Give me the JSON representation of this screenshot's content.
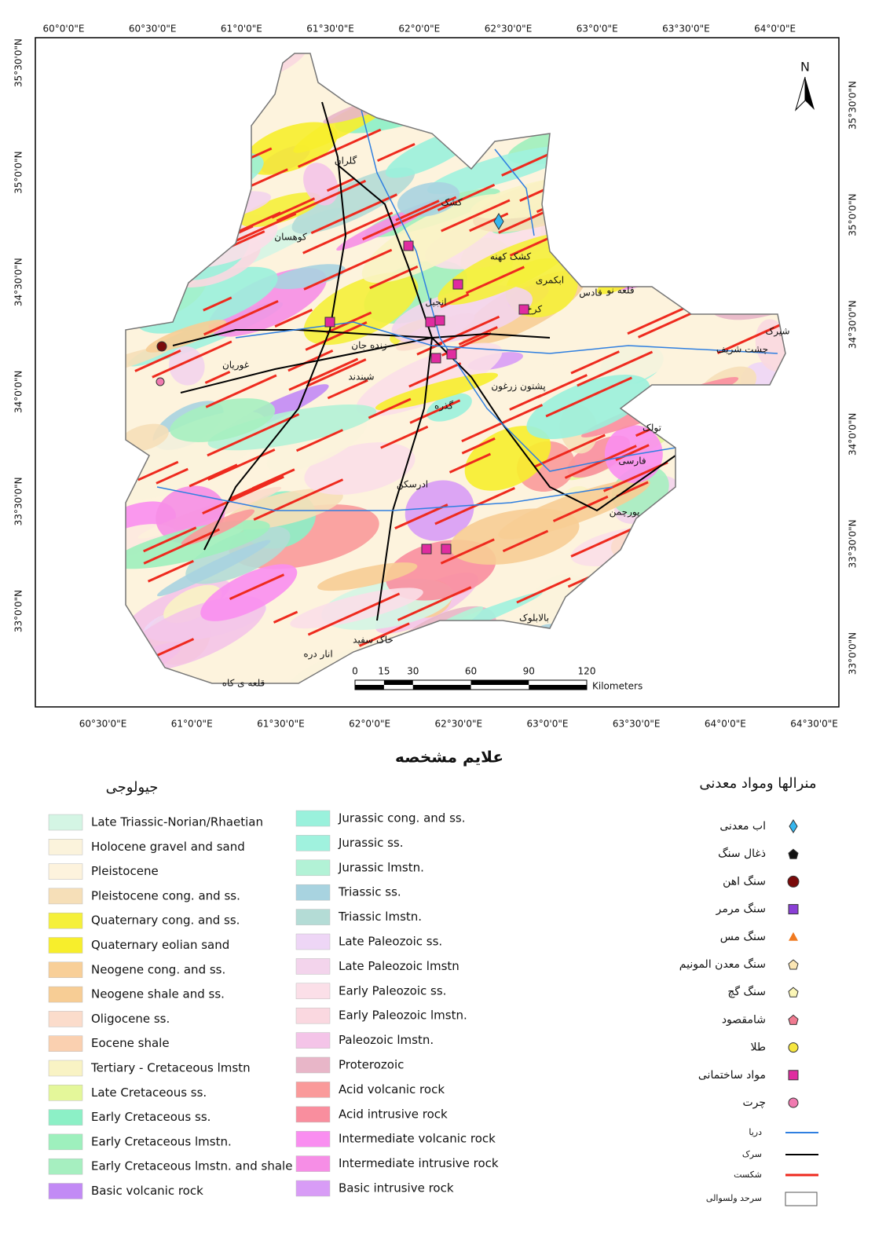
{
  "map": {
    "top_labels": [
      "60°0'0\"E",
      "60°30'0\"E",
      "61°0'0\"E",
      "61°30'0\"E",
      "62°0'0\"E",
      "62°30'0\"E",
      "63°0'0\"E",
      "63°30'0\"E",
      "64°0'0\"E"
    ],
    "bottom_labels": [
      "60°30'0\"E",
      "61°0'0\"E",
      "61°30'0\"E",
      "62°0'0\"E",
      "62°30'0\"E",
      "63°0'0\"E",
      "63°30'0\"E",
      "64°0'0\"E",
      "64°30'0\"E"
    ],
    "left_labels": [
      "35°30'0\"N",
      "35°0'0\"N",
      "34°30'0\"N",
      "34°0'0\"N",
      "33°30'0\"N",
      "33°0'0\"N"
    ],
    "right_labels": [
      "35°30'0\"N",
      "35°0'0\"N",
      "34°30'0\"N",
      "34°0'0\"N",
      "33°30'0\"N",
      "33°0'0\"N"
    ],
    "north": "N",
    "scale_ticks": [
      0,
      15,
      30,
      60,
      90,
      120
    ],
    "scale_unit": "Kilometers",
    "places": [
      "گلران",
      "کشک",
      "کوهسان",
      "کشک کهنه",
      "ابکمری",
      "قادس",
      "قلعه نو",
      "کرخ",
      "انجیل",
      "زنده جان",
      "غوریان",
      "پشتون زرغون",
      "گذره",
      "تولک",
      "فارسی",
      "ادرسکن",
      "پورچمن",
      "شیندند",
      "بالابلوک",
      "خاک سفید",
      "انار دره",
      "قلعه ی کاه",
      "شیرک",
      "چشت شریف"
    ]
  },
  "legend": {
    "title": "علایم مشخصه",
    "geology_title": "جیولوجی",
    "geology": [
      {
        "name": "Late Triassic-Norian/Rhaetian",
        "color": "#d4f5e4"
      },
      {
        "name": "Holocene gravel and sand",
        "color": "#fbf3dc"
      },
      {
        "name": "Pleistocene",
        "color": "#fdf3dd"
      },
      {
        "name": "Pleistocene cong. and ss.",
        "color": "#f6dfb8"
      },
      {
        "name": "Quaternary cong. and ss.",
        "color": "#f5f03a"
      },
      {
        "name": "Quaternary eolian sand",
        "color": "#f7ee2c"
      },
      {
        "name": "Neogene cong. and ss.",
        "color": "#f8cf98"
      },
      {
        "name": "Neogene shale and ss.",
        "color": "#f7cd95"
      },
      {
        "name": "Oligocene ss.",
        "color": "#fbdccb"
      },
      {
        "name": "Eocene shale",
        "color": "#fad0b0"
      },
      {
        "name": "Tertiary - Cretaceous lmstn",
        "color": "#f9f3c4"
      },
      {
        "name": "Late Cretaceous ss.",
        "color": "#e4f79a"
      },
      {
        "name": "Early Cretaceous ss.",
        "color": "#8cf0c6"
      },
      {
        "name": "Early Cretaceous lmstn.",
        "color": "#9ef0bd"
      },
      {
        "name": "Early Cretaceous lmstn. and shale",
        "color": "#a6efc0"
      },
      {
        "name": "Basic volcanic rock",
        "color": "#c28af5"
      },
      {
        "name": "Jurassic cong. and ss.",
        "color": "#9af1dc"
      },
      {
        "name": "Jurassic ss.",
        "color": "#a0f2de"
      },
      {
        "name": "Jurassic lmstn.",
        "color": "#b2f2d6"
      },
      {
        "name": "Triassic ss.",
        "color": "#a8d3e0"
      },
      {
        "name": "Triassic lmstn.",
        "color": "#b4dcd6"
      },
      {
        "name": "Late Paleozoic ss.",
        "color": "#eed6f6"
      },
      {
        "name": "Late Paleozoic lmstn",
        "color": "#f3d4ec"
      },
      {
        "name": "Early Paleozoic ss.",
        "color": "#fbdfe8"
      },
      {
        "name": "Early Paleozoic lmstn.",
        "color": "#fad8e0"
      },
      {
        "name": "Paleozoic lmstn.",
        "color": "#f4c4e8"
      },
      {
        "name": "Proterozoic",
        "color": "#e8b6c8"
      },
      {
        "name": "Acid volcanic rock",
        "color": "#fa9a9a"
      },
      {
        "name": "Acid intrusive rock",
        "color": "#f98e9e"
      },
      {
        "name": "Intermediate volcanic rock",
        "color": "#f98ef0"
      },
      {
        "name": "Intermediate intrusive rock",
        "color": "#f68ee6"
      },
      {
        "name": "Basic intrusive rock",
        "color": "#d89cf6"
      }
    ],
    "minerals_title": "منرالها ومواد معدنی",
    "minerals": [
      {
        "name": "اب معدنی",
        "color": "#35b6ee"
      },
      {
        "name": "ذغال سنگ",
        "color": "#111111"
      },
      {
        "name": "سنگ اهن",
        "color": "#7a0a0a"
      },
      {
        "name": "سنگ مرمر",
        "color": "#8a3fd6"
      },
      {
        "name": "سنگ مس",
        "color": "#f07a20"
      },
      {
        "name": "سنگ معدن المونیم",
        "color": "#fbe6b4"
      },
      {
        "name": "سنگ گچ",
        "color": "#fbf6b6"
      },
      {
        "name": "شامقصود",
        "color": "#f07a90"
      },
      {
        "name": "طلا",
        "color": "#f6e640"
      },
      {
        "name": "مواد ساختمانی",
        "color": "#e02ca0"
      },
      {
        "name": "چرت",
        "color": "#f07ab0"
      }
    ],
    "lines": [
      {
        "name": "دریا",
        "color": "#2f7fe0"
      },
      {
        "name": "سرک",
        "color": "#000000"
      },
      {
        "name": "شکست",
        "color": "#ee2a1e"
      },
      {
        "name": "سرحد ولسوالی",
        "color": "#555555"
      }
    ]
  }
}
